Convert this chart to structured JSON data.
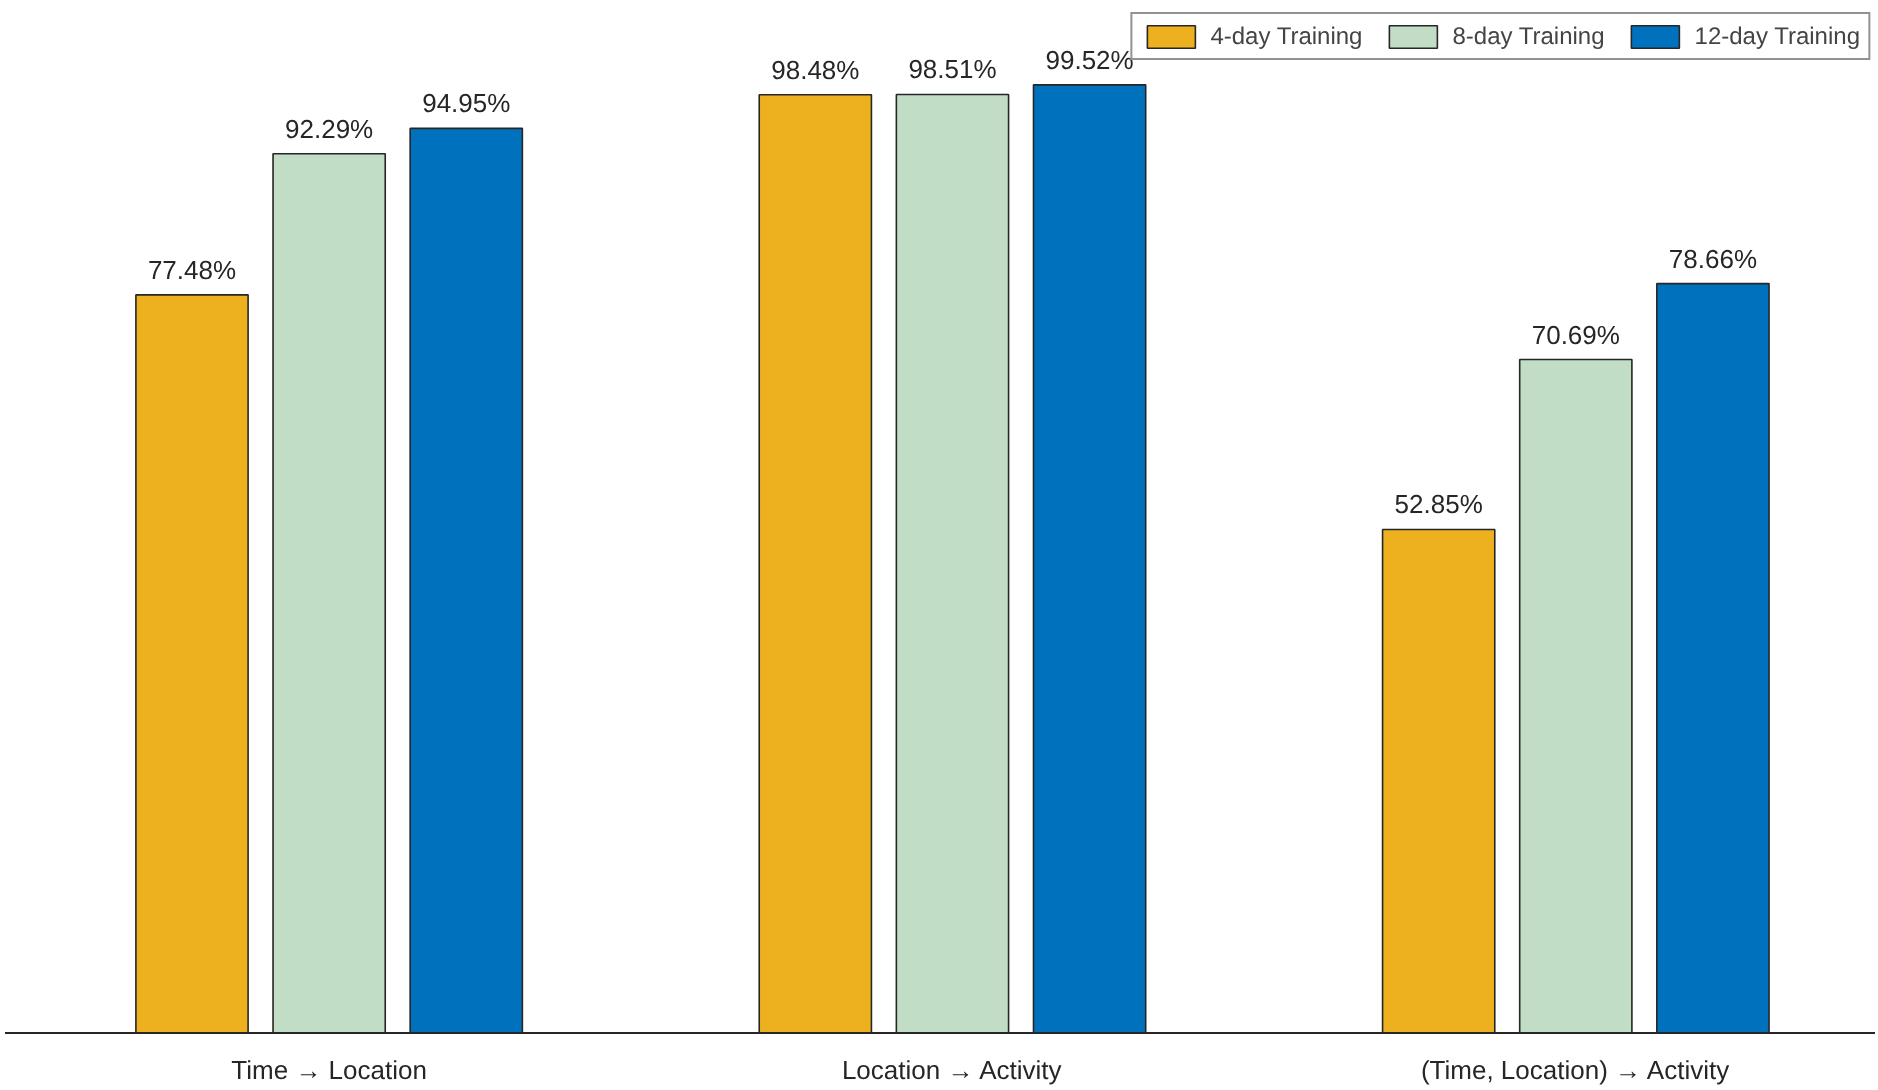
{
  "chart_data": {
    "type": "bar",
    "categories": [
      "Time → Location",
      "Location → Activity",
      "(Time, Location) → Activity"
    ],
    "series": [
      {
        "name": "4-day Training",
        "color": "#edb120",
        "values": [
          77.48,
          98.48,
          52.85
        ],
        "value_labels": [
          "77.48%",
          "98.48%",
          "52.85%"
        ]
      },
      {
        "name": "8-day Training",
        "color": "#c2ddc5",
        "values": [
          92.29,
          98.51,
          70.69
        ],
        "value_labels": [
          "92.29%",
          "98.51%",
          "70.69%"
        ]
      },
      {
        "name": "12-day Training",
        "color": "#0072bd",
        "values": [
          94.95,
          99.52,
          78.66
        ],
        "value_labels": [
          "94.95%",
          "99.52%",
          "78.66%"
        ]
      }
    ],
    "legend": "top right",
    "grid": false
  }
}
